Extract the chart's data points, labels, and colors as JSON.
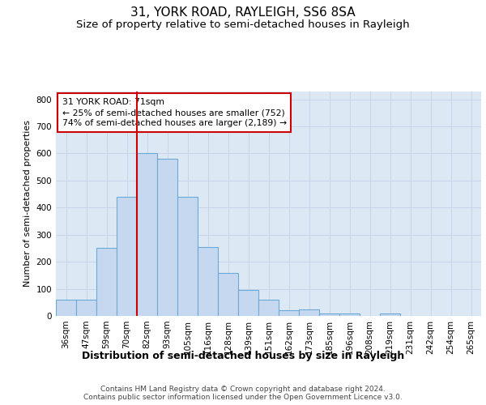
{
  "title": "31, YORK ROAD, RAYLEIGH, SS6 8SA",
  "subtitle": "Size of property relative to semi-detached houses in Rayleigh",
  "xlabel": "Distribution of semi-detached houses by size in Rayleigh",
  "ylabel": "Number of semi-detached properties",
  "categories": [
    "36sqm",
    "47sqm",
    "59sqm",
    "70sqm",
    "82sqm",
    "93sqm",
    "105sqm",
    "116sqm",
    "128sqm",
    "139sqm",
    "151sqm",
    "162sqm",
    "173sqm",
    "185sqm",
    "196sqm",
    "208sqm",
    "219sqm",
    "231sqm",
    "242sqm",
    "254sqm",
    "265sqm"
  ],
  "values": [
    60,
    60,
    250,
    440,
    600,
    580,
    440,
    255,
    160,
    95,
    60,
    20,
    25,
    10,
    10,
    0,
    8,
    0,
    0,
    0,
    0
  ],
  "bar_color": "#c5d8f0",
  "bar_edge_color": "#6aaad4",
  "vline_color": "#cc0000",
  "annotation_text": "31 YORK ROAD: 71sqm\n← 25% of semi-detached houses are smaller (752)\n74% of semi-detached houses are larger (2,189) →",
  "annotation_box_color": "#ffffff",
  "annotation_box_edge": "#cc0000",
  "ylim": [
    0,
    830
  ],
  "yticks": [
    0,
    100,
    200,
    300,
    400,
    500,
    600,
    700,
    800
  ],
  "grid_color": "#c8d4e8",
  "bg_color": "#dde8f5",
  "footer": "Contains HM Land Registry data © Crown copyright and database right 2024.\nContains public sector information licensed under the Open Government Licence v3.0.",
  "title_fontsize": 11,
  "subtitle_fontsize": 9.5,
  "xlabel_fontsize": 9,
  "ylabel_fontsize": 8,
  "tick_fontsize": 7.5,
  "footer_fontsize": 6.5,
  "vline_bin_index": 4
}
